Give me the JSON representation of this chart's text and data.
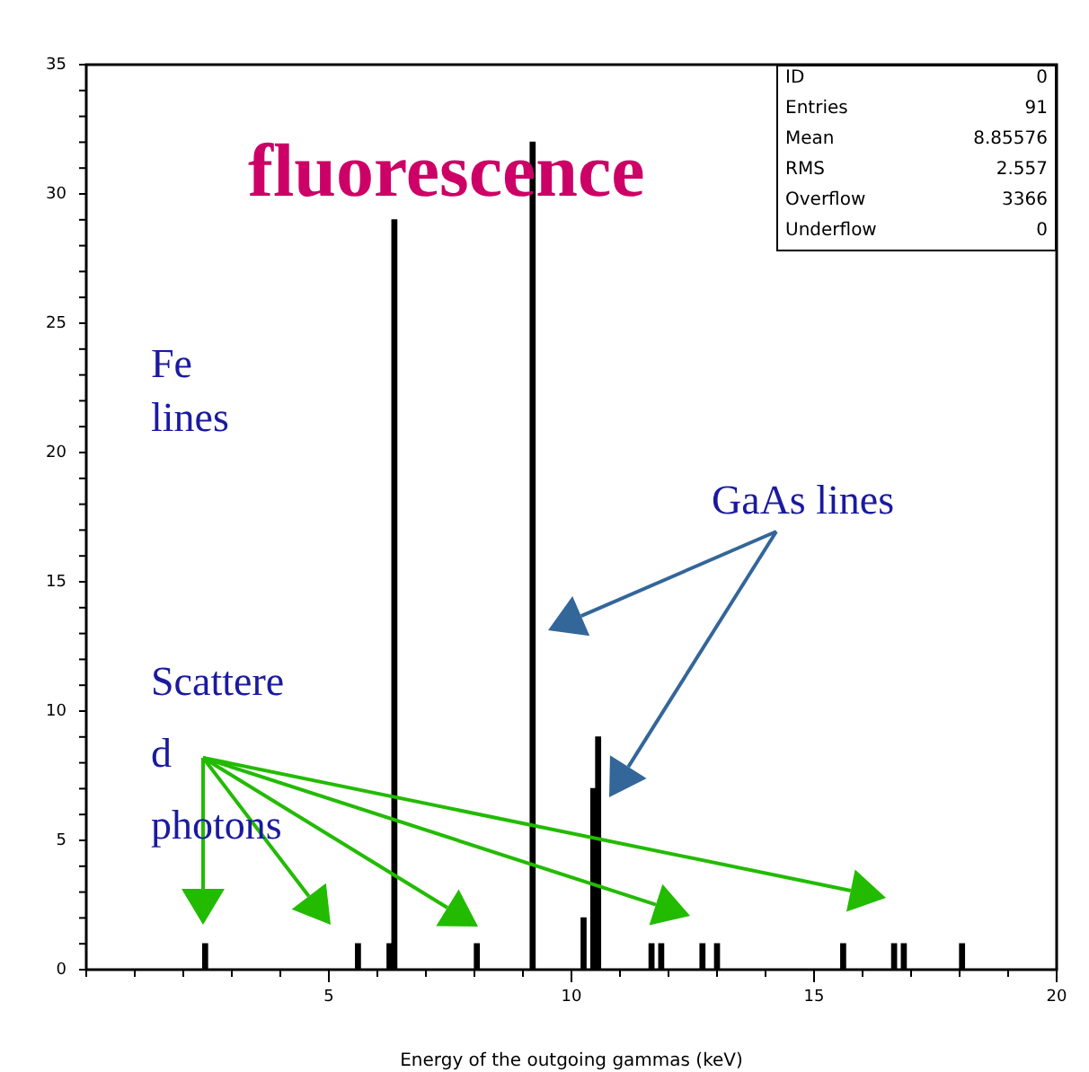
{
  "chart_data": {
    "type": "histogram",
    "xlabel": "Energy of the outgoing gammas (keV)",
    "bins": [
      0,
      2.4,
      2.5,
      5.55,
      5.65,
      6.2,
      6.3,
      6.4,
      8.0,
      8.1,
      9.15,
      9.25,
      10.2,
      10.3,
      10.4,
      10.5,
      10.6,
      11.6,
      11.7,
      11.8,
      11.9,
      12.65,
      12.75,
      12.95,
      13.05,
      15.55,
      15.65,
      16.6,
      16.7,
      16.8,
      16.9,
      18.0,
      18.1,
      20
    ],
    "values": [
      0,
      1,
      0,
      1,
      0,
      1,
      29,
      0,
      1,
      0,
      32,
      0,
      2,
      0,
      7,
      9,
      0,
      1,
      0,
      1,
      0,
      1,
      0,
      1,
      0,
      1,
      0,
      1,
      0,
      1,
      0,
      1,
      0
    ],
    "color": "#000000",
    "xlim": [
      0,
      20
    ],
    "xticks": [
      5,
      10,
      15,
      20
    ],
    "ylim": [
      0,
      35
    ],
    "yticks": [
      0,
      5,
      10,
      15,
      20,
      25,
      30,
      35
    ],
    "grid": false,
    "legend": false,
    "annotations": [
      "fluorescence",
      "Fe lines",
      "GaAs lines",
      "Scattered photons",
      "ID 0",
      "Entries 91",
      "Mean 8.85576",
      "RMS 2.557",
      "Overflow 3366",
      "Underflow 0"
    ]
  }
}
